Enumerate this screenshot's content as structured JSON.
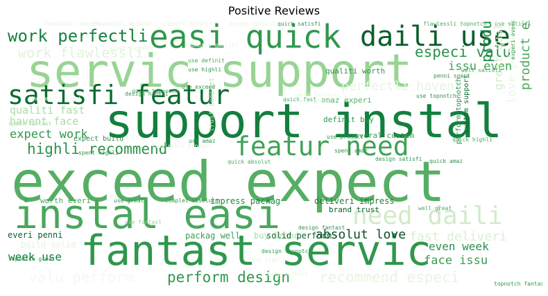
{
  "chart_data": {
    "type": "word-cloud",
    "title": "Positive Reviews",
    "palette": "Greens",
    "words": [
      {
        "text": "exceed expect",
        "weight": 1.0,
        "color": "#55ae63"
      },
      {
        "text": "support instal",
        "weight": 0.86,
        "color": "#137f3d"
      },
      {
        "text": "servic support",
        "weight": 0.84,
        "color": "#98d493"
      },
      {
        "text": "fantast servic",
        "weight": 0.74,
        "color": "#2f974c"
      },
      {
        "text": "instal easi",
        "weight": 0.72,
        "color": "#48a75d"
      },
      {
        "text": "easi quick",
        "weight": 0.52,
        "color": "#2f974c"
      },
      {
        "text": "daili use",
        "weight": 0.5,
        "color": "#0a5f2b"
      },
      {
        "text": "satisfi featur",
        "weight": 0.46,
        "color": "#0b6a30"
      },
      {
        "text": "featur need",
        "weight": 0.46,
        "color": "#3fa256"
      },
      {
        "text": "need daili",
        "weight": 0.44,
        "color": "#d0ebc9"
      },
      {
        "text": "work perfectli",
        "weight": 0.3,
        "color": "#17813e"
      },
      {
        "text": "especi valu",
        "weight": 0.28,
        "color": "#2a914a"
      },
      {
        "text": "highli recommend",
        "weight": 0.28,
        "color": "#2c924a"
      },
      {
        "text": "perform design",
        "weight": 0.28,
        "color": "#2f974c"
      },
      {
        "text": "recommend especi",
        "weight": 0.28,
        "color": "#e6f5e1"
      },
      {
        "text": "valu perform",
        "weight": 0.28,
        "color": "#f3faf0"
      },
      {
        "text": "product work",
        "weight": 0.26,
        "color": "#1c8840"
      },
      {
        "text": "work flawlessli",
        "weight": 0.26,
        "color": "#e1f3dc"
      },
      {
        "text": "product exceed",
        "weight": 0.24,
        "color": "#4ba75b"
      },
      {
        "text": "absolut love",
        "weight": 0.24,
        "color": "#0b4e24"
      },
      {
        "text": "fast deliveri",
        "weight": 0.24,
        "color": "#d9f0d3"
      },
      {
        "text": "perfectli havent",
        "weight": 0.24,
        "color": "#e6f5e1"
      },
      {
        "text": "love product",
        "weight": 0.22,
        "color": "#eaf7e5"
      },
      {
        "text": "issu even",
        "weight": 0.22,
        "color": "#40a257"
      },
      {
        "text": "expect work",
        "weight": 0.22,
        "color": "#2f974c"
      },
      {
        "text": "face issu",
        "weight": 0.22,
        "color": "#3a9d52"
      },
      {
        "text": "great qualiti",
        "weight": 0.2,
        "color": "#d2edcb"
      },
      {
        "text": "even week",
        "weight": 0.2,
        "color": "#2a914a"
      },
      {
        "text": "week use",
        "weight": 0.2,
        "color": "#137f3d"
      },
      {
        "text": "qualiti fast",
        "weight": 0.18,
        "color": "#a9dca2"
      },
      {
        "text": "havent face",
        "weight": 0.18,
        "color": "#a9dca2"
      },
      {
        "text": "trust complet",
        "weight": 0.12,
        "color": "#b9e2b2"
      },
      {
        "text": "impress packag",
        "weight": 0.1,
        "color": "#1c8840"
      },
      {
        "text": "deliveri impress",
        "weight": 0.1,
        "color": "#17813e"
      },
      {
        "text": "packag well",
        "weight": 0.1,
        "color": "#3a9d52"
      },
      {
        "text": "buy brand",
        "weight": 0.1,
        "color": "#a9dca2"
      },
      {
        "text": "solid perform",
        "weight": 0.1,
        "color": "#0a5f2b"
      },
      {
        "text": "everi penni",
        "weight": 0.1,
        "color": "#0a5f2b"
      },
      {
        "text": "build solid",
        "weight": 0.1,
        "color": "#e1f3dc"
      },
      {
        "text": "brand trust",
        "weight": 0.1,
        "color": "#0a5f2b"
      },
      {
        "text": "worth everi",
        "weight": 0.1,
        "color": "#48a75d"
      },
      {
        "text": "perform topnotch",
        "weight": 0.1,
        "color": "#2a914a"
      },
      {
        "text": "custom support",
        "weight": 0.1,
        "color": "#0b6a30"
      },
      {
        "text": "qualiti worth",
        "weight": 0.1,
        "color": "#2c924a"
      },
      {
        "text": "overal custom",
        "weight": 0.1,
        "color": "#3a9d52"
      },
      {
        "text": "definit buy",
        "weight": 0.1,
        "color": "#2f974c"
      },
      {
        "text": "amaz experi",
        "weight": 0.1,
        "color": "#55ae63"
      },
      {
        "text": "expect build",
        "weight": 0.08,
        "color": "#2c924a"
      },
      {
        "text": "use amaz",
        "weight": 0.08,
        "color": "#2a914a"
      },
      {
        "text": "use product",
        "weight": 0.08,
        "color": "#2c924a"
      },
      {
        "text": "use great",
        "weight": 0.06,
        "color": "#2f974c"
      },
      {
        "text": "use fantast",
        "weight": 0.06,
        "color": "#98d493"
      },
      {
        "text": "use exceed",
        "weight": 0.06,
        "color": "#2a914a"
      },
      {
        "text": "use topnotch",
        "weight": 0.06,
        "color": "#2a914a"
      },
      {
        "text": "use highli",
        "weight": 0.06,
        "color": "#2f974c"
      },
      {
        "text": "use definit",
        "weight": 0.06,
        "color": "#48a75d"
      },
      {
        "text": "use satisfi",
        "weight": 0.06,
        "color": "#55ae63"
      },
      {
        "text": "quick satisfi",
        "weight": 0.06,
        "color": "#2f974c"
      },
      {
        "text": "quick amaz",
        "weight": 0.06,
        "color": "#2c924a"
      },
      {
        "text": "quick highli",
        "weight": 0.06,
        "color": "#48a75d"
      },
      {
        "text": "quick absolut",
        "weight": 0.06,
        "color": "#48a75d"
      },
      {
        "text": "quick fast",
        "weight": 0.06,
        "color": "#48a75d"
      },
      {
        "text": "quick topnotch",
        "weight": 0.06,
        "color": "#48a75d"
      },
      {
        "text": "design highli",
        "weight": 0.06,
        "color": "#2f974c"
      },
      {
        "text": "design satisfi",
        "weight": 0.06,
        "color": "#2c924a"
      },
      {
        "text": "design topnotch",
        "weight": 0.06,
        "color": "#2f974c"
      },
      {
        "text": "design fantast",
        "weight": 0.06,
        "color": "#2a914a"
      },
      {
        "text": "design definit",
        "weight": 0.06,
        "color": "#e6f5e1"
      },
      {
        "text": "spent amaz",
        "weight": 0.06,
        "color": "#2c924a"
      },
      {
        "text": "spent highli",
        "weight": 0.06,
        "color": "#2f974c"
      },
      {
        "text": "spent fantast",
        "weight": 0.06,
        "color": "#a9dca2"
      },
      {
        "text": "penni spent",
        "weight": 0.06,
        "color": "#2c924a"
      },
      {
        "text": "experi overal",
        "weight": 0.06,
        "color": "#2f974c"
      },
      {
        "text": "flawlessli product",
        "weight": 0.06,
        "color": "#e1f3dc"
      },
      {
        "text": "flawlessli great",
        "weight": 0.06,
        "color": "#e6f5e1"
      },
      {
        "text": "flawlessli topnotch",
        "weight": 0.06,
        "color": "#48a75d"
      },
      {
        "text": "flawlessli exceed",
        "weight": 0.06,
        "color": "#e1f3dc"
      },
      {
        "text": "flawlessli absolut",
        "weight": 0.06,
        "color": "#e1f3dc"
      },
      {
        "text": "complet absolut",
        "weight": 0.06,
        "color": "#2f974c"
      },
      {
        "text": "topnotch great",
        "weight": 0.06,
        "color": "#2f974c"
      },
      {
        "text": "topnotch fantast",
        "weight": 0.06,
        "color": "#2f974c"
      },
      {
        "text": "well great",
        "weight": 0.06,
        "color": "#48a75d"
      },
      {
        "text": "well satisfi",
        "weight": 0.06,
        "color": "#48a75d"
      },
      {
        "text": "help definit",
        "weight": 0.06,
        "color": "#e6f5e1"
      },
      {
        "text": "help fantast",
        "weight": 0.06,
        "color": "#e6f5e1"
      },
      {
        "text": "help great",
        "weight": 0.06,
        "color": "#e6f5e1"
      },
      {
        "text": "help highli",
        "weight": 0.06,
        "color": "#e6f5e1"
      },
      {
        "text": "topnotch qualiti",
        "weight": 0.06,
        "color": "#e6f5e1"
      },
      {
        "text": "great support",
        "weight": 0.06,
        "color": "#e6f5e1"
      },
      {
        "text": "support definit",
        "weight": 0.06,
        "color": "#e6f5e1"
      }
    ]
  }
}
